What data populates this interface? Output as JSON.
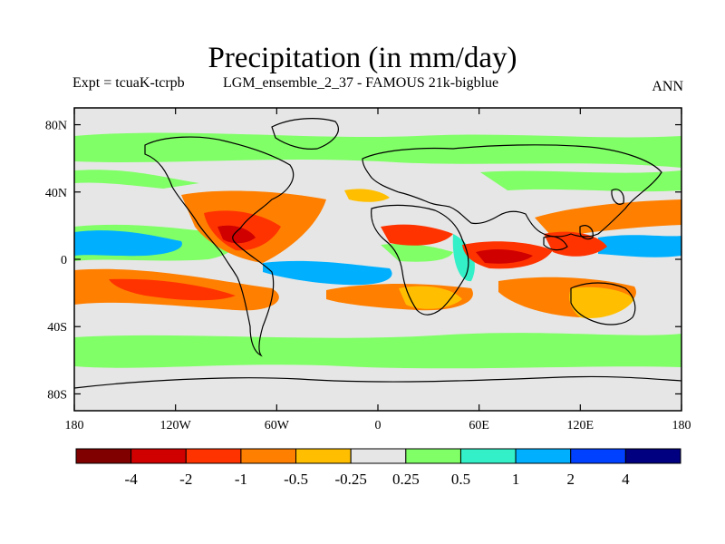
{
  "header": {
    "title": "Precipitation (in mm/day)",
    "experiment": "Expt = tcuaK-tcrpb",
    "run": "LGM_ensemble_2_37 - FAMOUS 21k-bigblue",
    "season": "ANN"
  },
  "axes": {
    "lat_ticks": [
      "80N",
      "40N",
      "0",
      "40S",
      "80S"
    ],
    "lat_values": [
      80,
      40,
      0,
      -40,
      -80
    ],
    "lon_ticks": [
      "180",
      "120W",
      "60W",
      "0",
      "60E",
      "120E",
      "180"
    ],
    "lon_values": [
      -180,
      -120,
      -60,
      0,
      60,
      120,
      180
    ]
  },
  "colorbar": {
    "colors": [
      "#800000",
      "#d00000",
      "#ff3300",
      "#ff7f00",
      "#ffbf00",
      "#e6e6e6",
      "#80ff66",
      "#33f0c8",
      "#00b0ff",
      "#0040ff",
      "#000080"
    ],
    "labels": [
      "-4",
      "-2",
      "-1",
      "-0.5",
      "-0.25",
      "0.25",
      "0.5",
      "1",
      "2",
      "4"
    ]
  }
}
